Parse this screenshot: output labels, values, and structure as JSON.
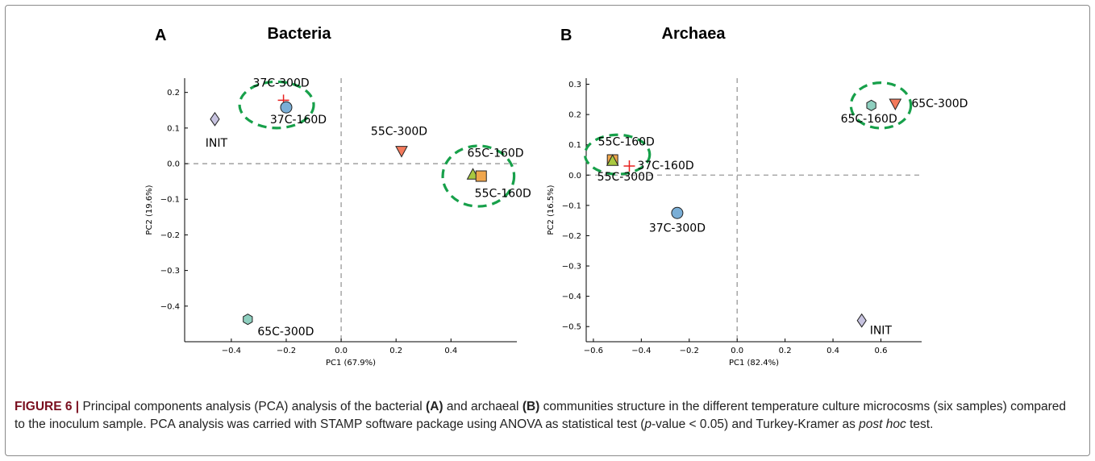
{
  "figure": {
    "caption": {
      "label": "FIGURE 6 |",
      "t1": " Principal components analysis (PCA) analysis of the bacterial ",
      "b1": "(A)",
      "t2": " and archaeal ",
      "b2": "(B)",
      "t3": " communities structure in the different temperature culture microcosms (six samples) compared to the inoculum sample. PCA analysis was carried with STAMP software package using ANOVA as statistical test (",
      "i1": "p",
      "t4": "-value < 0.05) and Turkey-Kramer as ",
      "i2": "post hoc",
      "t5": " test."
    }
  },
  "colors": {
    "blue": "#7aaed6",
    "purple": "#c7c3e0",
    "teal": "#8ecfbf",
    "red": "#f47a5c",
    "green_yellow": "#a9c940",
    "orange": "#f0a64c",
    "cross": "#e8201f",
    "ellipse": "#17a04a",
    "dashed_axis": "#999999"
  },
  "chart_data": [
    {
      "panel": "A",
      "type": "scatter",
      "title": "Bacteria",
      "xlabel": "PC1 (67.9%)",
      "ylabel": "PC2 (19.6%)",
      "xlim": [
        -0.57,
        0.64
      ],
      "ylim": [
        -0.5,
        0.24
      ],
      "xticks": [
        -0.4,
        -0.2,
        0.0,
        0.2,
        0.4
      ],
      "xtick_labels": [
        "−0.4",
        "−0.2",
        "0.0",
        "0.2",
        "0.4"
      ],
      "yticks": [
        0.2,
        0.1,
        0.0,
        -0.1,
        -0.2,
        -0.3,
        -0.4
      ],
      "ytick_labels": [
        "0.2",
        "0.1",
        "0.0",
        "−0.1",
        "−0.2",
        "−0.3",
        "−0.4"
      ],
      "points": [
        {
          "label": "37C-300D",
          "x": -0.21,
          "y": 0.178,
          "marker": "cross",
          "color": "cross"
        },
        {
          "label": "37C-160D",
          "x": -0.2,
          "y": 0.158,
          "marker": "circle",
          "color": "blue"
        },
        {
          "label": "INIT",
          "x": -0.46,
          "y": 0.125,
          "marker": "diamond",
          "color": "purple"
        },
        {
          "label": "55C-300D",
          "x": 0.22,
          "y": 0.035,
          "marker": "triangle-down",
          "color": "red"
        },
        {
          "label": "65C-160D",
          "x": 0.48,
          "y": -0.03,
          "marker": "triangle-up",
          "color": "green_yellow"
        },
        {
          "label": "55C-160D",
          "x": 0.51,
          "y": -0.035,
          "marker": "square",
          "color": "orange"
        },
        {
          "label": "65C-300D",
          "x": -0.34,
          "y": -0.437,
          "marker": "hexagon",
          "color": "teal"
        }
      ],
      "ellipses": [
        {
          "cx": -0.235,
          "cy": 0.165,
          "rx": 0.135,
          "ry": 0.065
        },
        {
          "cx": 0.5,
          "cy": -0.035,
          "rx": 0.13,
          "ry": 0.085
        }
      ]
    },
    {
      "panel": "B",
      "type": "scatter",
      "title": "Archaea",
      "xlabel": "PC1 (82.4%)",
      "ylabel": "PC2 (16.5%)",
      "xlim": [
        -0.63,
        0.77
      ],
      "ylim": [
        -0.55,
        0.32
      ],
      "xticks": [
        -0.6,
        -0.4,
        -0.2,
        0.0,
        0.2,
        0.4,
        0.6
      ],
      "xtick_labels": [
        "−0.6",
        "−0.4",
        "−0.2",
        "0.0",
        "0.2",
        "0.4",
        "0.6"
      ],
      "yticks": [
        0.3,
        0.2,
        0.1,
        0.0,
        -0.1,
        -0.2,
        -0.3,
        -0.4,
        -0.5
      ],
      "ytick_labels": [
        "0.3",
        "0.2",
        "0.1",
        "0.0",
        "−0.1",
        "−0.2",
        "−0.3",
        "−0.4",
        "−0.5"
      ],
      "points": [
        {
          "label": "65C-160D",
          "x": 0.56,
          "y": 0.23,
          "marker": "hexagon",
          "color": "teal"
        },
        {
          "label": "65C-300D",
          "x": 0.66,
          "y": 0.235,
          "marker": "triangle-down",
          "color": "red"
        },
        {
          "label": "55C-160D",
          "x": -0.52,
          "y": 0.05,
          "marker": "square",
          "color": "orange"
        },
        {
          "label": "55C-300D",
          "x": -0.52,
          "y": 0.048,
          "marker": "triangle-up",
          "color": "green_yellow"
        },
        {
          "label": "37C-160D",
          "x": -0.45,
          "y": 0.03,
          "marker": "cross",
          "color": "cross"
        },
        {
          "label": "37C-300D",
          "x": -0.25,
          "y": -0.125,
          "marker": "circle",
          "color": "blue"
        },
        {
          "label": "INIT",
          "x": 0.52,
          "y": -0.48,
          "marker": "diamond",
          "color": "purple"
        }
      ],
      "ellipses": [
        {
          "cx": -0.5,
          "cy": 0.068,
          "rx": 0.135,
          "ry": 0.065
        },
        {
          "cx": 0.6,
          "cy": 0.23,
          "rx": 0.125,
          "ry": 0.075
        }
      ]
    }
  ]
}
